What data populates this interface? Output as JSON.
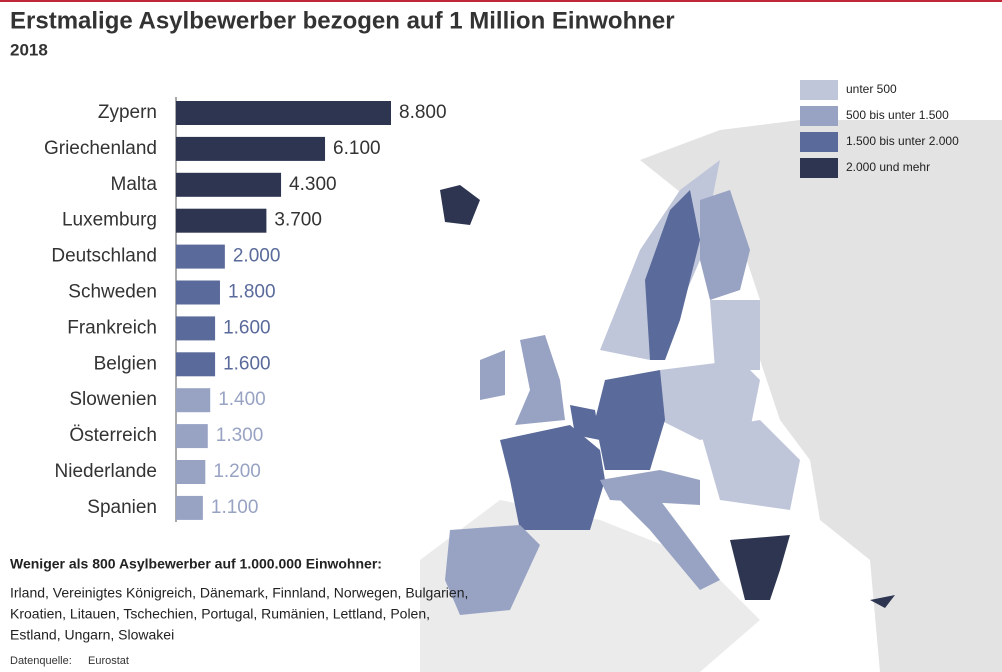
{
  "chart_data": {
    "type": "bar",
    "orientation": "horizontal",
    "title": "Erstmalige Asylbewerber bezogen auf 1 Million Einwohner",
    "subtitle": "2018",
    "categories": [
      "Zypern",
      "Griechenland",
      "Malta",
      "Luxemburg",
      "Deutschland",
      "Schweden",
      "Frankreich",
      "Belgien",
      "Slowenien",
      "Österreich",
      "Niederlande",
      "Spanien"
    ],
    "values": [
      8800,
      6100,
      4300,
      3700,
      2000,
      1800,
      1600,
      1600,
      1400,
      1300,
      1200,
      1100
    ],
    "value_labels": [
      "8.800",
      "6.100",
      "4.300",
      "3.700",
      "2.000",
      "1.800",
      "1.600",
      "1.600",
      "1.400",
      "1.300",
      "1.200",
      "1.100"
    ],
    "colors": [
      "#2d3550",
      "#2d3550",
      "#2d3550",
      "#2d3550",
      "#5a6a9a",
      "#5a6a9a",
      "#5a6a9a",
      "#5a6a9a",
      "#98a3c4",
      "#98a3c4",
      "#98a3c4",
      "#98a3c4"
    ],
    "legend": [
      {
        "name": "unter 500",
        "color": "#c0c6da"
      },
      {
        "name": "500 bis unter 1.500",
        "color": "#98a3c4"
      },
      {
        "name": "1.500 bis unter 2.000",
        "color": "#5a6a9a"
      },
      {
        "name": "2.000 und mehr",
        "color": "#2d3550"
      }
    ],
    "note_title": "Weniger als 800 Asylbewerber auf 1.000.000 Einwohner:",
    "note_lines": [
      "Irland, Vereinigtes Königreich, Dänemark, Finnland, Norwegen, Bulgarien,",
      "Kroatien, Litauen, Tschechien, Portugal, Rumänien, Lettland, Polen,",
      "Estland, Ungarn, Slowakei"
    ],
    "source_label": "Datenquelle:",
    "source": "Eurostat"
  }
}
